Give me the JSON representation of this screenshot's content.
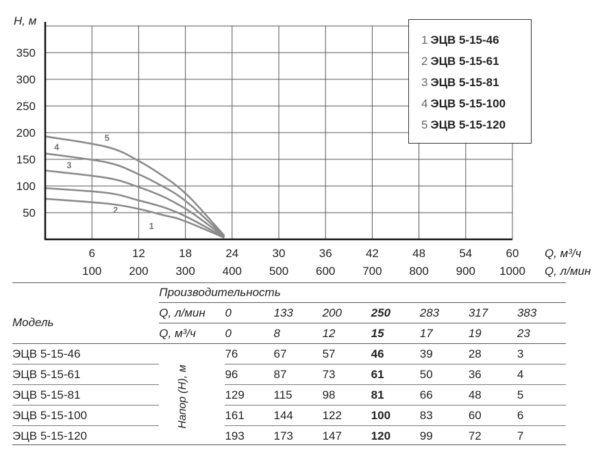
{
  "chart_data": {
    "type": "line",
    "ylabel": "H, м",
    "xlabel_primary": "Q, м³/ч",
    "xlabel_secondary": "Q, л/мин",
    "xlim": [
      0,
      60
    ],
    "ylim": [
      0,
      400
    ],
    "y_ticks": [
      50,
      100,
      150,
      200,
      250,
      300,
      350
    ],
    "x_ticks_primary": [
      6,
      12,
      18,
      24,
      30,
      36,
      42,
      48,
      54,
      60
    ],
    "x_ticks_secondary": [
      100,
      200,
      300,
      400,
      500,
      600,
      700,
      800,
      900,
      1000
    ],
    "grid": true,
    "legend_position": "top-right",
    "series": [
      {
        "name": "ЭЦВ 5-15-46",
        "label": "1",
        "x": [
          0,
          8,
          12,
          15,
          17,
          19,
          23
        ],
        "values": [
          76,
          67,
          57,
          46,
          39,
          28,
          3
        ]
      },
      {
        "name": "ЭЦВ 5-15-61",
        "label": "2",
        "x": [
          0,
          8,
          12,
          15,
          17,
          19,
          23
        ],
        "values": [
          96,
          87,
          73,
          61,
          50,
          36,
          4
        ]
      },
      {
        "name": "ЭЦВ 5-15-81",
        "label": "3",
        "x": [
          0,
          8,
          12,
          15,
          17,
          19,
          23
        ],
        "values": [
          129,
          115,
          98,
          81,
          66,
          48,
          5
        ]
      },
      {
        "name": "ЭЦВ 5-15-100",
        "label": "4",
        "x": [
          0,
          8,
          12,
          15,
          17,
          19,
          23
        ],
        "values": [
          161,
          144,
          122,
          100,
          83,
          60,
          6
        ]
      },
      {
        "name": "ЭЦВ 5-15-120",
        "label": "5",
        "x": [
          0,
          8,
          12,
          15,
          17,
          19,
          23
        ],
        "values": [
          193,
          173,
          147,
          120,
          99,
          72,
          7
        ]
      }
    ]
  },
  "legend": [
    {
      "num": "1",
      "name": "ЭЦВ 5-15-46"
    },
    {
      "num": "2",
      "name": "ЭЦВ 5-15-61"
    },
    {
      "num": "3",
      "name": "ЭЦВ 5-15-81"
    },
    {
      "num": "4",
      "name": "ЭЦВ 5-15-100"
    },
    {
      "num": "5",
      "name": "ЭЦВ 5-15-120"
    }
  ],
  "table": {
    "group_header": "Производительность",
    "model_header": "Модель",
    "lpm_label": "Q, л/мин",
    "m3h_label": "Q, м³/ч",
    "lpm": [
      "0",
      "133",
      "200",
      "250",
      "283",
      "317",
      "383"
    ],
    "m3h": [
      "0",
      "8",
      "12",
      "15",
      "17",
      "19",
      "23"
    ],
    "side_label": "Напор (Н), м",
    "rows": [
      {
        "model": "ЭЦВ 5-15-46",
        "values": [
          "76",
          "67",
          "57",
          "46",
          "39",
          "28",
          "3"
        ]
      },
      {
        "model": "ЭЦВ 5-15-61",
        "values": [
          "96",
          "87",
          "73",
          "61",
          "50",
          "36",
          "4"
        ]
      },
      {
        "model": "ЭЦВ 5-15-81",
        "values": [
          "129",
          "115",
          "98",
          "81",
          "66",
          "48",
          "5"
        ]
      },
      {
        "model": "ЭЦВ 5-15-100",
        "values": [
          "161",
          "144",
          "122",
          "100",
          "83",
          "60",
          "6"
        ]
      },
      {
        "model": "ЭЦВ 5-15-120",
        "values": [
          "193",
          "173",
          "147",
          "120",
          "99",
          "72",
          "7"
        ]
      }
    ]
  },
  "colors": {
    "curve": "#8a8a8a",
    "grid": "#555555",
    "axis": "#111111",
    "label": "#222222"
  }
}
